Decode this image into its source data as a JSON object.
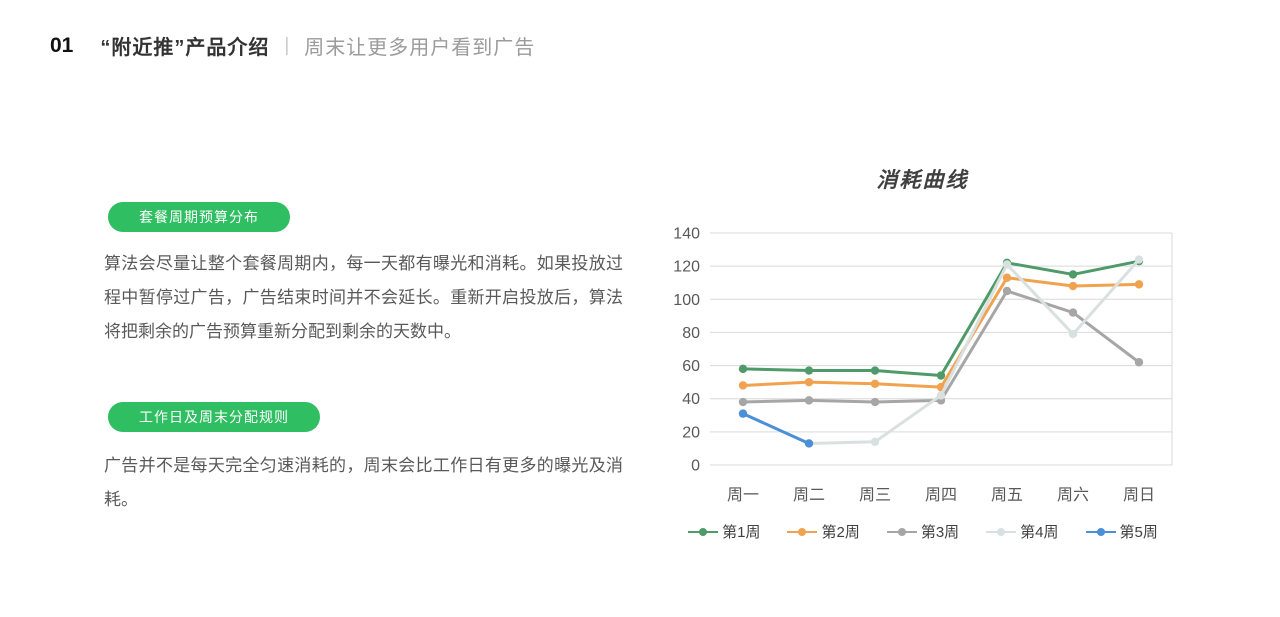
{
  "header": {
    "number": "01",
    "title": "“附近推”产品介绍",
    "divider": "|",
    "subtitle": "周末让更多用户看到广告"
  },
  "sections": [
    {
      "badge": "套餐周期预算分布",
      "body": "算法会尽量让整个套餐周期内，每一天都有曝光和消耗。如果投放过程中暂停过广告，广告结束时间并不会延长。重新开启投放后，算法将把剩余的广告预算重新分配到剩余的天数中。"
    },
    {
      "badge": "工作日及周末分配规则",
      "body": "广告并不是每天完全匀速消耗的，周末会比工作日有更多的曝光及消耗。"
    }
  ],
  "colors": {
    "badge_green": "#2fbe62",
    "grid_line": "#d9d9d9",
    "axis_label": "#595959",
    "legend_text": "#404040"
  },
  "chart_data": {
    "type": "line",
    "title": "消耗曲线",
    "categories": [
      "周一",
      "周二",
      "周三",
      "周四",
      "周五",
      "周六",
      "周日"
    ],
    "series": [
      {
        "name": "第1周",
        "color": "#4e9a68",
        "values": [
          58,
          57,
          57,
          54,
          122,
          115,
          123
        ]
      },
      {
        "name": "第2周",
        "color": "#f0a24f",
        "values": [
          48,
          50,
          49,
          47,
          113,
          108,
          109
        ]
      },
      {
        "name": "第3周",
        "color": "#a6a6a6",
        "values": [
          38,
          39,
          38,
          39,
          105,
          92,
          62
        ]
      },
      {
        "name": "第4周",
        "color": "#d9e1e0",
        "values": [
          null,
          13,
          14,
          42,
          121,
          79,
          124
        ]
      },
      {
        "name": "第5周",
        "color": "#4a8fd8",
        "values": [
          31,
          13,
          null,
          null,
          null,
          null,
          null
        ]
      }
    ],
    "ylim": [
      0,
      140
    ],
    "ytick_step": 20,
    "grid": true,
    "legend_position": "bottom"
  }
}
